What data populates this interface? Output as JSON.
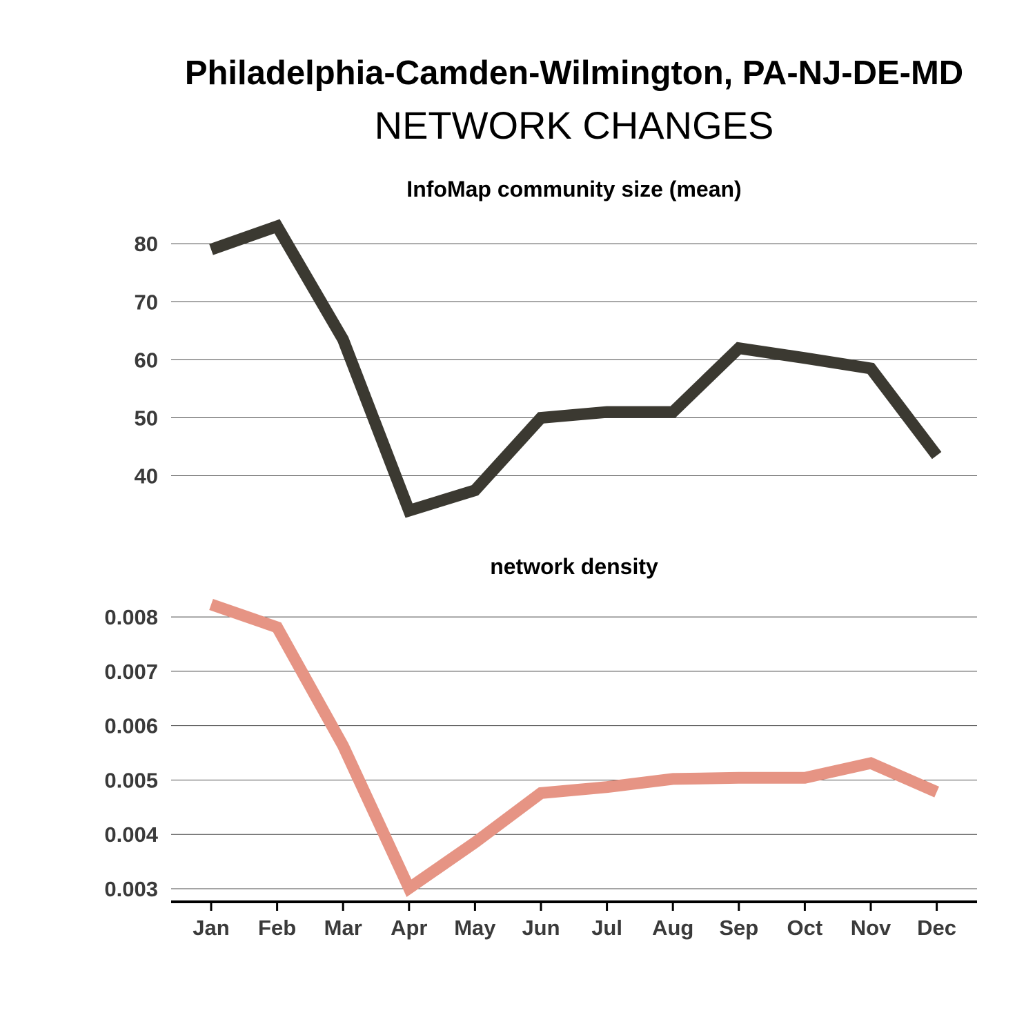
{
  "title": "Philadelphia-Camden-Wilmington, PA-NJ-DE-MD",
  "subtitle": "NETWORK CHANGES",
  "colors": {
    "community_line": "#3b3931",
    "density_line": "#e69484",
    "axis": "#000000"
  },
  "chart_data": [
    {
      "type": "line",
      "title": "InfoMap community size (mean)",
      "categories": [
        "Jan",
        "Feb",
        "Mar",
        "Apr",
        "May",
        "Jun",
        "Jul",
        "Aug",
        "Sep",
        "Oct",
        "Nov",
        "Dec"
      ],
      "values": [
        79,
        83,
        63.5,
        34,
        37.5,
        50,
        51,
        51,
        62,
        60.3,
        58.5,
        43.5
      ],
      "yticks": [
        40,
        50,
        60,
        70,
        80
      ],
      "ytick_labels": [
        "40",
        "50",
        "60",
        "70",
        "80"
      ],
      "ylim": [
        34,
        83
      ],
      "grid": true
    },
    {
      "type": "line",
      "title": "network density",
      "categories": [
        "Jan",
        "Feb",
        "Mar",
        "Apr",
        "May",
        "Jun",
        "Jul",
        "Aug",
        "Sep",
        "Oct",
        "Nov",
        "Dec"
      ],
      "values": [
        0.00823,
        0.00781,
        0.00563,
        0.00301,
        0.00385,
        0.00476,
        0.00487,
        0.00502,
        0.00504,
        0.00504,
        0.00531,
        0.00478
      ],
      "yticks": [
        0.003,
        0.004,
        0.005,
        0.006,
        0.007,
        0.008
      ],
      "ytick_labels": [
        "0.003",
        "0.004",
        "0.005",
        "0.006",
        "0.007",
        "0.008"
      ],
      "ylim": [
        0.003,
        0.00823
      ],
      "grid": true
    }
  ]
}
